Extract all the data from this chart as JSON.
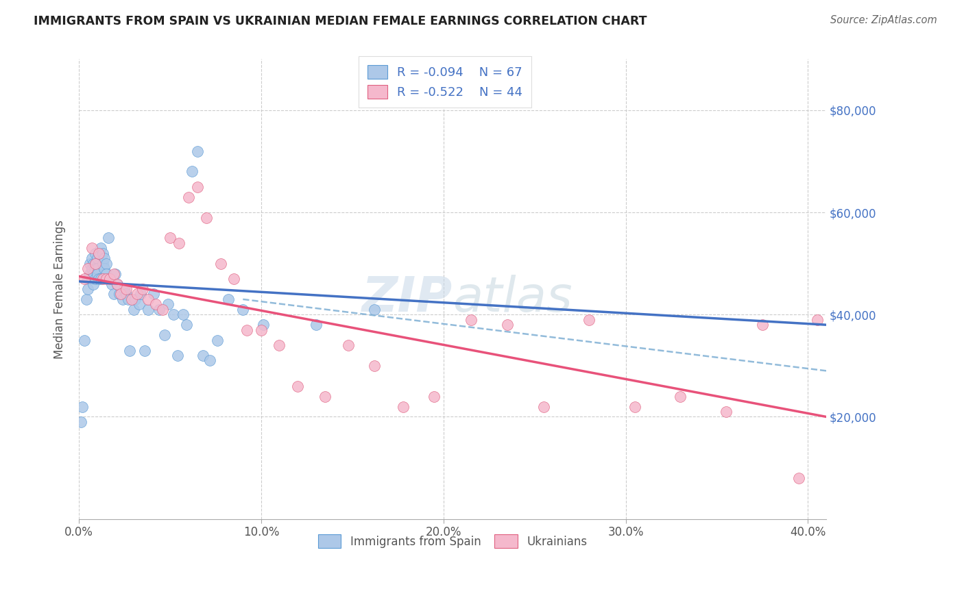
{
  "title": "IMMIGRANTS FROM SPAIN VS UKRAINIAN MEDIAN FEMALE EARNINGS CORRELATION CHART",
  "source": "Source: ZipAtlas.com",
  "ylabel": "Median Female Earnings",
  "ytick_labels": [
    "$20,000",
    "$40,000",
    "$60,000",
    "$80,000"
  ],
  "ytick_values": [
    20000,
    40000,
    60000,
    80000
  ],
  "xlim": [
    0.0,
    0.41
  ],
  "ylim": [
    0,
    90000
  ],
  "legend_label1": "Immigrants from Spain",
  "legend_label2": "Ukrainians",
  "r1": "-0.094",
  "n1": "67",
  "r2": "-0.522",
  "n2": "44",
  "color_spain": "#adc8e8",
  "color_ukraine": "#f5b8cc",
  "color_spain_line": "#4472c4",
  "color_ukraine_line": "#e8527a",
  "color_spain_dark": "#5b9bd5",
  "color_ukraine_dark": "#e06080",
  "spain_x": [
    0.001,
    0.002,
    0.003,
    0.004,
    0.005,
    0.005,
    0.006,
    0.006,
    0.007,
    0.007,
    0.007,
    0.008,
    0.008,
    0.008,
    0.009,
    0.009,
    0.009,
    0.009,
    0.01,
    0.01,
    0.01,
    0.011,
    0.011,
    0.012,
    0.012,
    0.013,
    0.013,
    0.014,
    0.014,
    0.015,
    0.015,
    0.016,
    0.017,
    0.018,
    0.019,
    0.02,
    0.021,
    0.022,
    0.024,
    0.025,
    0.026,
    0.027,
    0.028,
    0.03,
    0.031,
    0.033,
    0.034,
    0.036,
    0.038,
    0.041,
    0.044,
    0.047,
    0.049,
    0.052,
    0.054,
    0.057,
    0.059,
    0.062,
    0.065,
    0.068,
    0.072,
    0.076,
    0.082,
    0.09,
    0.101,
    0.13,
    0.162
  ],
  "spain_y": [
    19000,
    22000,
    35000,
    43000,
    47000,
    45000,
    48000,
    50000,
    47000,
    49000,
    51000,
    50000,
    48000,
    46000,
    52000,
    50000,
    49000,
    47000,
    51000,
    49000,
    48000,
    52000,
    47000,
    53000,
    47000,
    52000,
    50000,
    51000,
    49000,
    50000,
    48000,
    55000,
    47000,
    46000,
    44000,
    48000,
    46000,
    44000,
    43000,
    45000,
    44000,
    43000,
    33000,
    41000,
    43000,
    42000,
    44000,
    33000,
    41000,
    44000,
    41000,
    36000,
    42000,
    40000,
    32000,
    40000,
    38000,
    68000,
    72000,
    32000,
    31000,
    35000,
    43000,
    41000,
    38000,
    38000,
    41000
  ],
  "ukraine_x": [
    0.003,
    0.005,
    0.007,
    0.009,
    0.011,
    0.013,
    0.015,
    0.017,
    0.019,
    0.021,
    0.023,
    0.026,
    0.029,
    0.032,
    0.035,
    0.038,
    0.042,
    0.046,
    0.05,
    0.055,
    0.06,
    0.065,
    0.07,
    0.078,
    0.085,
    0.092,
    0.1,
    0.11,
    0.12,
    0.135,
    0.148,
    0.162,
    0.178,
    0.195,
    0.215,
    0.235,
    0.255,
    0.28,
    0.305,
    0.33,
    0.355,
    0.375,
    0.395,
    0.405
  ],
  "ukraine_y": [
    47000,
    49000,
    53000,
    50000,
    52000,
    47000,
    47000,
    47000,
    48000,
    46000,
    44000,
    45000,
    43000,
    44000,
    45000,
    43000,
    42000,
    41000,
    55000,
    54000,
    63000,
    65000,
    59000,
    50000,
    47000,
    37000,
    37000,
    34000,
    26000,
    24000,
    34000,
    30000,
    22000,
    24000,
    39000,
    38000,
    22000,
    39000,
    22000,
    24000,
    21000,
    38000,
    8000,
    39000
  ]
}
